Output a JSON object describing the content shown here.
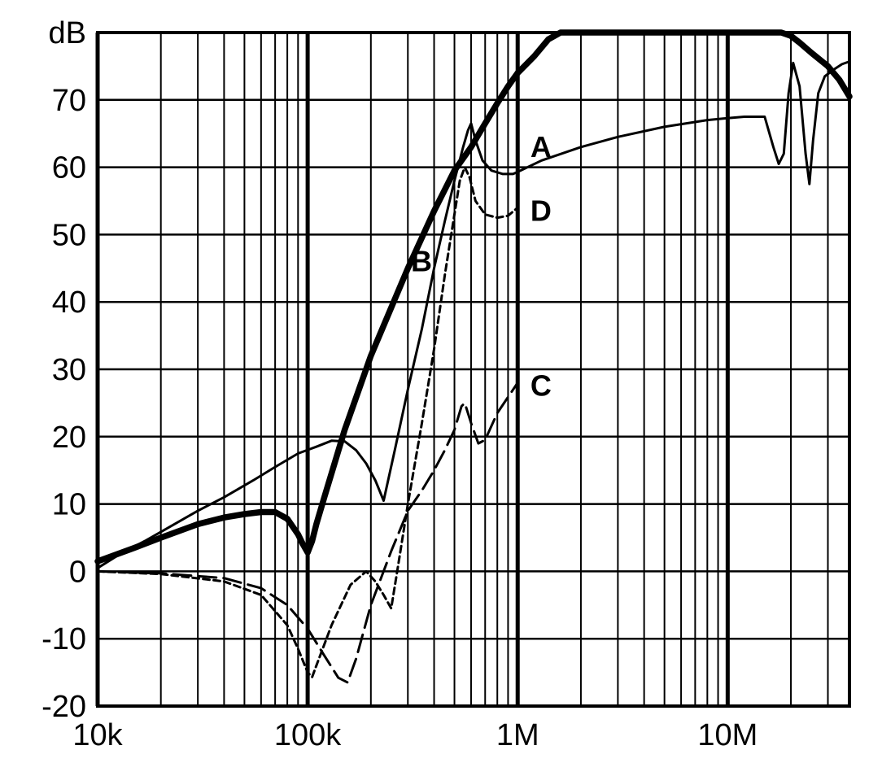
{
  "chart_data": {
    "type": "line",
    "title": "",
    "xlabel": "",
    "ylabel": "",
    "y_unit_label": "dB",
    "xscale": "log",
    "xlim": [
      10000,
      38000000
    ],
    "ylim": [
      -20,
      80
    ],
    "grid": true,
    "x_tick_labels": [
      {
        "value": 10000,
        "label": "10k"
      },
      {
        "value": 100000,
        "label": "100k"
      },
      {
        "value": 1000000,
        "label": "1M"
      },
      {
        "value": 10000000,
        "label": "10M"
      }
    ],
    "y_tick_labels": [
      {
        "value": 80,
        "label": "dB"
      },
      {
        "value": 70,
        "label": "70"
      },
      {
        "value": 60,
        "label": "60"
      },
      {
        "value": 50,
        "label": "50"
      },
      {
        "value": 40,
        "label": "40"
      },
      {
        "value": 30,
        "label": "30"
      },
      {
        "value": 20,
        "label": "20"
      },
      {
        "value": 10,
        "label": "10"
      },
      {
        "value": 0,
        "label": "0"
      },
      {
        "value": -10,
        "label": "-10"
      },
      {
        "value": -20,
        "label": "-20"
      }
    ],
    "series": [
      {
        "name": "A",
        "style": "thin-solid",
        "label_at": [
          1150000,
          63
        ],
        "x": [
          10000,
          13000,
          17000,
          22000,
          30000,
          40000,
          55000,
          70000,
          90000,
          110000,
          130000,
          150000,
          170000,
          190000,
          210000,
          230000,
          260000,
          300000,
          350000,
          400000,
          450000,
          500000,
          550000,
          580000,
          600000,
          630000,
          680000,
          750000,
          850000,
          950000,
          1000000,
          1300000,
          2000000,
          3000000,
          5000000,
          8000000,
          10000000,
          12000000,
          13500000,
          15000000,
          16500000,
          17500000,
          18500000,
          19500000,
          20500000,
          22000000,
          23500000,
          24500000,
          25500000,
          27000000,
          29000000,
          32000000,
          35000000,
          38000000
        ],
        "y": [
          0.5,
          2.7,
          4.6,
          6.6,
          9.0,
          11.0,
          13.5,
          15.5,
          17.5,
          18.5,
          19.4,
          19.3,
          18.0,
          16.0,
          13.5,
          10.5,
          18.0,
          27.0,
          36.0,
          45.0,
          52.0,
          58.0,
          63.0,
          65.5,
          66.5,
          64.0,
          61.0,
          59.5,
          59.0,
          59.0,
          59.3,
          61.0,
          63.0,
          64.5,
          66.0,
          67.0,
          67.3,
          67.5,
          67.5,
          67.5,
          63.0,
          60.5,
          62.0,
          71.0,
          75.5,
          72.0,
          62.0,
          57.5,
          64.0,
          71.0,
          73.5,
          74.5,
          75.3,
          75.7
        ]
      },
      {
        "name": "B",
        "style": "thick-solid",
        "label_at": [
          310000,
          46
        ],
        "x": [
          10000,
          15000,
          20000,
          30000,
          40000,
          50000,
          60000,
          70000,
          80000,
          90000,
          95000,
          100000,
          105000,
          110000,
          120000,
          150000,
          200000,
          300000,
          400000,
          500000,
          600000,
          700000,
          800000,
          900000,
          1000000,
          1200000,
          1400000,
          1600000,
          2000000,
          5000000,
          10000000,
          15000000,
          18000000,
          20000000,
          22000000,
          25000000,
          30000000,
          34000000,
          38000000
        ],
        "y": [
          1.5,
          3.5,
          5.0,
          7.0,
          8.0,
          8.5,
          8.8,
          8.8,
          7.8,
          5.5,
          4.0,
          2.8,
          4.5,
          7.0,
          11.0,
          21.0,
          32.0,
          45.0,
          53.5,
          59.5,
          63.0,
          66.5,
          69.5,
          72.0,
          74.0,
          76.5,
          79.0,
          80.0,
          80.0,
          80.0,
          80.0,
          80.0,
          80.0,
          79.5,
          78.5,
          77.0,
          75.0,
          73.0,
          70.5
        ]
      },
      {
        "name": "C",
        "style": "long-dash",
        "label_at": [
          1150000,
          27.5
        ],
        "x": [
          10000,
          20000,
          40000,
          60000,
          80000,
          100000,
          120000,
          140000,
          155000,
          170000,
          200000,
          250000,
          300000,
          350000,
          400000,
          450000,
          500000,
          540000,
          560000,
          600000,
          650000,
          700000,
          800000,
          1000000
        ],
        "y": [
          0,
          -0.3,
          -1.0,
          -2.5,
          -5.0,
          -8.5,
          -12.5,
          -15.8,
          -16.5,
          -13.0,
          -5.0,
          3.0,
          9.0,
          12.0,
          15.0,
          18.0,
          21.0,
          24.5,
          25.0,
          22.0,
          19.0,
          19.5,
          23.5,
          28.0
        ]
      },
      {
        "name": "D",
        "style": "short-dash",
        "label_at": [
          1150000,
          53.5
        ],
        "x": [
          10000,
          20000,
          40000,
          60000,
          80000,
          90000,
          100000,
          105000,
          110000,
          130000,
          160000,
          190000,
          210000,
          230000,
          250000,
          270000,
          300000,
          350000,
          400000,
          450000,
          500000,
          530000,
          560000,
          590000,
          630000,
          700000,
          800000,
          900000,
          1000000
        ],
        "y": [
          0,
          -0.4,
          -1.5,
          -3.5,
          -8.0,
          -11.5,
          -15.0,
          -15.7,
          -14.0,
          -8.0,
          -2.0,
          0,
          -1.5,
          -3.5,
          -5.5,
          1.0,
          10.0,
          22.0,
          33.0,
          44.0,
          53.0,
          58.0,
          60.0,
          58.5,
          55.0,
          53.0,
          52.5,
          52.8,
          54.0
        ]
      }
    ]
  }
}
